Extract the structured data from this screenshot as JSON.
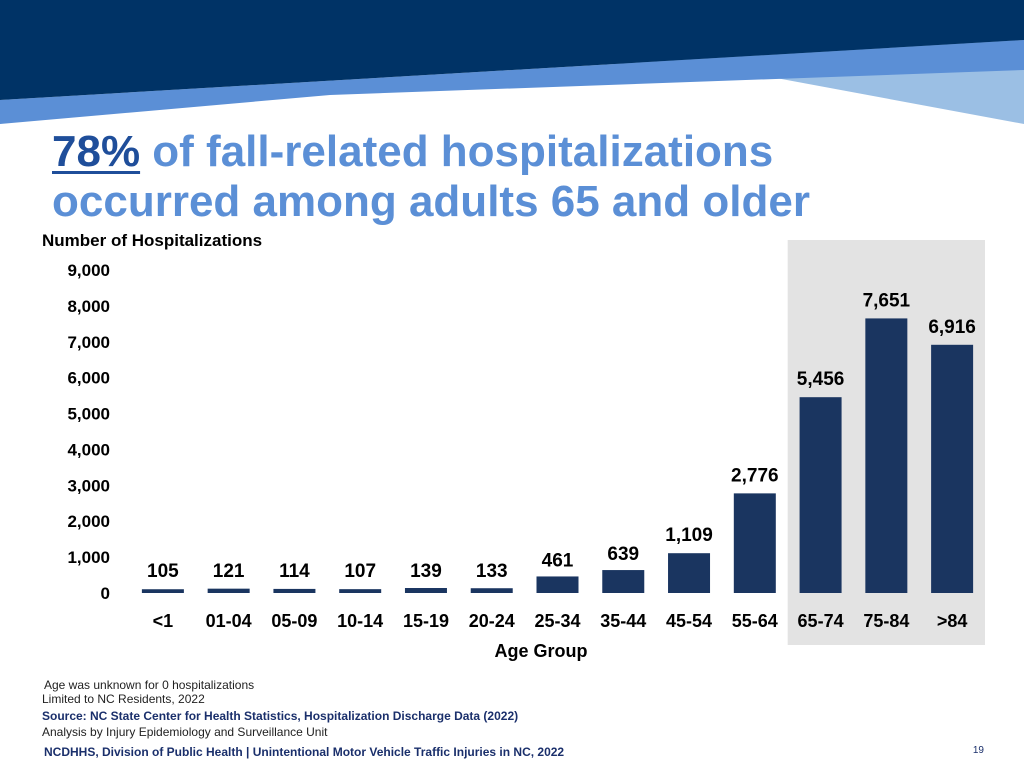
{
  "title": {
    "highlight": "78%",
    "line1_rest": " of fall-related hospitalizations",
    "line2": "occurred among adults 65 and older"
  },
  "colors": {
    "banner_dark": "#003366",
    "banner_mid": "#5b8fd6",
    "banner_light": "#9bbfe4",
    "bar": "#1a3560",
    "highlight_bg": "#e3e3e3",
    "title": "#5b8fd6",
    "title_pct": "#1f4e9a"
  },
  "chart_data": {
    "type": "bar",
    "title": "",
    "ylabel": "Number of Hospitalizations",
    "xlabel": "Age Group",
    "categories": [
      "<1",
      "01-04",
      "05-09",
      "10-14",
      "15-19",
      "20-24",
      "25-34",
      "35-44",
      "45-54",
      "55-64",
      "65-74",
      "75-84",
      ">84"
    ],
    "values": [
      105,
      121,
      114,
      107,
      139,
      133,
      461,
      639,
      1109,
      2776,
      5456,
      7651,
      6916
    ],
    "value_labels": [
      "105",
      "121",
      "114",
      "107",
      "139",
      "133",
      "461",
      "639",
      "1,109",
      "2,776",
      "5,456",
      "7,651",
      "6,916"
    ],
    "ylim": [
      0,
      9000
    ],
    "yticks": [
      0,
      1000,
      2000,
      3000,
      4000,
      5000,
      6000,
      7000,
      8000,
      9000
    ],
    "ytick_labels": [
      "0",
      "1,000",
      "2,000",
      "3,000",
      "4,000",
      "5,000",
      "6,000",
      "7,000",
      "8,000",
      "9,000"
    ],
    "highlighted_categories": [
      "65-74",
      "75-84",
      ">84"
    ],
    "grid": false
  },
  "notes": {
    "unknown": "Age was unknown for 0 hospitalizations",
    "limited": "Limited to NC Residents, 2022",
    "source": "Source: NC State Center for Health Statistics, Hospitalization Discharge Data (2022)",
    "analysis": "Analysis by Injury Epidemiology and Surveillance Unit"
  },
  "footer": {
    "text": "NCDHHS, Division of Public Health | Unintentional Motor Vehicle Traffic Injuries in NC, 2022",
    "page_number": "19"
  }
}
